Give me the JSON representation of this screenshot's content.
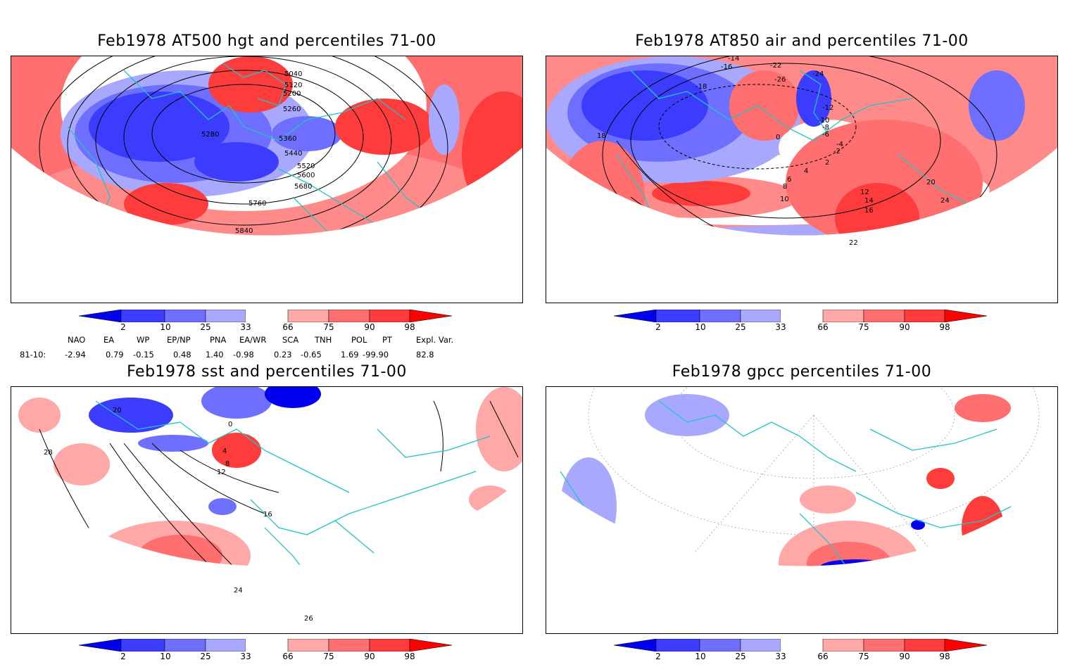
{
  "panels": [
    {
      "title": "Feb1978 AT500 hgt and percentiles 71-00",
      "contour_labels": [
        "5040",
        "5120",
        "5200",
        "5260",
        "5280",
        "5360",
        "5440",
        "5520",
        "5600",
        "5680",
        "5760",
        "5840"
      ]
    },
    {
      "title": "Feb1978 AT850 air and percentiles 71-00",
      "contour_labels": [
        "-14",
        "-16",
        "-18",
        "-22",
        "-26",
        "-24",
        "-12",
        "-10",
        "-8",
        "-6",
        "-4",
        "-2",
        "0",
        "2",
        "4",
        "6",
        "8",
        "10",
        "12",
        "14",
        "16",
        "18",
        "20",
        "22",
        "24"
      ]
    },
    {
      "title": "Feb1978 sst and percentiles 71-00",
      "contour_labels": [
        "20",
        "28",
        "0",
        "4",
        "8",
        "12",
        "16",
        "24",
        "26"
      ]
    },
    {
      "title": "Feb1978 gpcc percentiles 71-00",
      "contour_labels": []
    }
  ],
  "colorbar": {
    "labels": [
      "2",
      "10",
      "25",
      "33",
      "66",
      "75",
      "90",
      "98"
    ],
    "colors": [
      "#0000ee",
      "#3c3cff",
      "#6f6fff",
      "#a8a8ff",
      "#ffffff",
      "#ffa8a8",
      "#ff6f6f",
      "#ff3c3c",
      "#ff0000"
    ]
  },
  "indices": {
    "headers": [
      "NAO",
      "EA",
      "WP",
      "EP/NP",
      "PNA",
      "EA/WR",
      "SCA",
      "TNH",
      "POL",
      "PT",
      "Expl. Var."
    ],
    "row_label": "81-10:",
    "values": [
      "-2.94",
      "0.79",
      "-0.15",
      "0.48",
      "1.40",
      "-0.98",
      "0.23",
      "-0.65",
      "1.69",
      "-99.90",
      "82.8"
    ]
  },
  "colors": {
    "coast": "#22c4c4",
    "contour": "#000000",
    "border": "#000000"
  }
}
